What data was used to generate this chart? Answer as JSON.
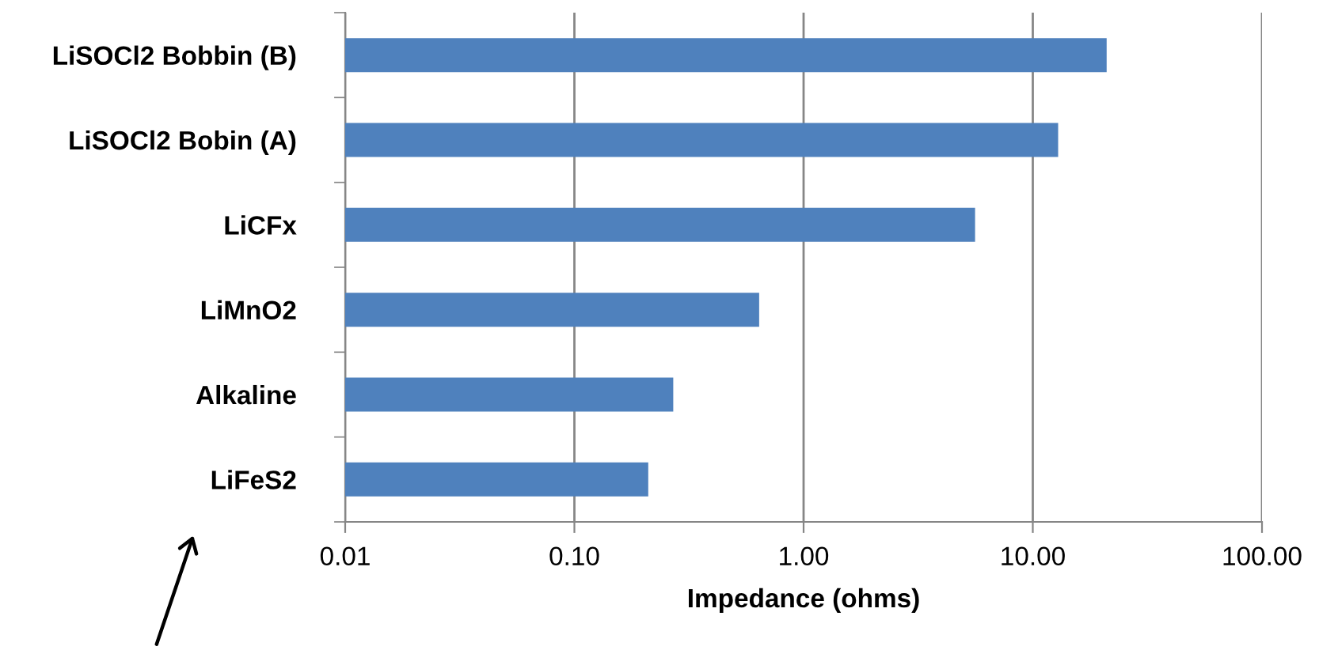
{
  "chart_data": {
    "type": "bar",
    "orientation": "horizontal",
    "xlabel": "Impedance (ohms)",
    "categories": [
      "LiSOCl2 Bobbin (B)",
      "LiSOCl2 Bobin (A)",
      "LiCFx",
      "LiMnO2",
      "Alkaline",
      "LiFeS2"
    ],
    "values": [
      21,
      12.9,
      5.6,
      0.64,
      0.27,
      0.21
    ],
    "color": "#4f81bd",
    "log": "x",
    "xlim": [
      0.01,
      100
    ],
    "xticks": [
      {
        "value": 0.01,
        "label": "0.01"
      },
      {
        "value": 0.1,
        "label": "0.10"
      },
      {
        "value": 1,
        "label": "1.00"
      },
      {
        "value": 10,
        "label": "10.00"
      },
      {
        "value": 100,
        "label": "100.00"
      }
    ],
    "grid": "x",
    "legend": false
  }
}
